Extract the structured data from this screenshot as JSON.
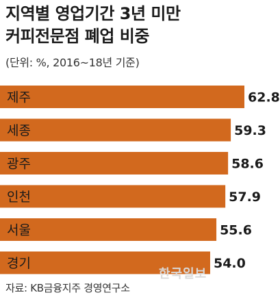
{
  "title": "지역별 영업기간 3년 미만\n커피전문점 폐업 비중",
  "unit_note": "(단위: %, 2016~18년 기준)",
  "source": "자료: KB금융지주 경영연구소",
  "watermark": "한국일보",
  "colors": {
    "bar": "#d2691e",
    "text": "#1a1a1a"
  },
  "chart_data": {
    "type": "bar",
    "orientation": "horizontal",
    "title": "지역별 영업기간 3년 미만 커피전문점 폐업 비중",
    "categories": [
      "제주",
      "세종",
      "광주",
      "인천",
      "서울",
      "경기"
    ],
    "values": [
      62.8,
      59.3,
      58.6,
      57.9,
      55.6,
      54.0
    ],
    "value_labels": [
      "62.8",
      "59.3",
      "58.6",
      "57.9",
      "55.6",
      "54.0"
    ],
    "xlim": [
      0,
      66
    ],
    "xlabel": "",
    "ylabel": "",
    "grid": false,
    "legend": "none"
  }
}
